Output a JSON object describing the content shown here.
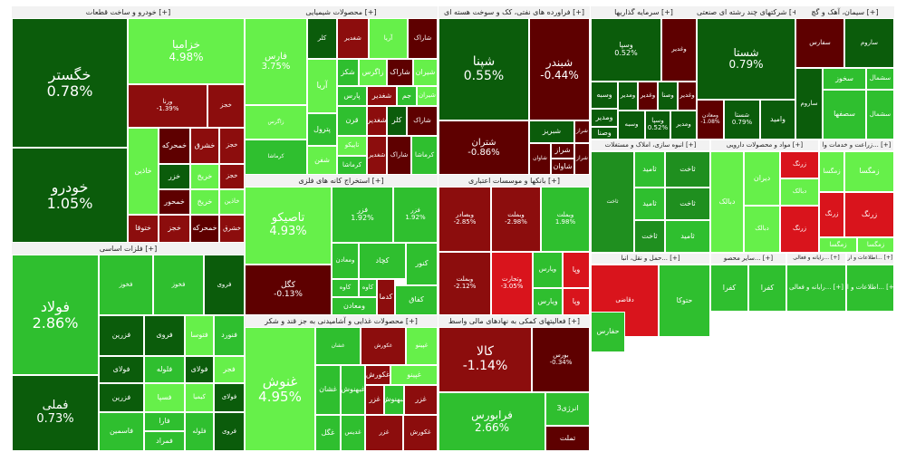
{
  "colors": {
    "dark_green": "#0b5c0b",
    "mid_green": "#1f8f1f",
    "green": "#2fbf2f",
    "light_green": "#66f04a",
    "dark_red": "#5e0000",
    "mid_red": "#8c0d0d",
    "red": "#d9141c"
  },
  "sections": [
    {
      "id": "auto",
      "title": "خودرو و ساخت قطعات [+]",
      "tiles": [
        {
          "name": "خگستر",
          "pct": "0.78%",
          "c": "dark_green"
        },
        {
          "name": "خودرو",
          "pct": "1.05%",
          "c": "dark_green"
        },
        {
          "name": "خزامیا",
          "pct": "4.98%",
          "c": "light_green"
        },
        {
          "name": "ورنا",
          "pct": "-1.39%",
          "c": "mid_red"
        },
        {
          "name": "خاذین",
          "pct": "",
          "c": "light_green"
        },
        {
          "name": "خمحرکه",
          "pct": "",
          "c": "dark_red"
        },
        {
          "name": "خشرق",
          "pct": "",
          "c": "mid_red"
        },
        {
          "name": "خزر",
          "pct": "",
          "c": "dark_green"
        },
        {
          "name": "خمحور",
          "pct": "",
          "c": "dark_red"
        },
        {
          "name": "ختوقا",
          "pct": "",
          "c": "mid_red"
        },
        {
          "name": "خریخ",
          "pct": "",
          "c": "light_green"
        },
        {
          "name": "خجز",
          "pct": "",
          "c": "mid_red"
        }
      ]
    },
    {
      "id": "metals",
      "title": "فلزات اساسی [+]",
      "tiles": [
        {
          "name": "فولاد",
          "pct": "2.86%",
          "c": "green"
        },
        {
          "name": "فملی",
          "pct": "0.73%",
          "c": "dark_green"
        },
        {
          "name": "فخوز",
          "pct": "",
          "c": "green"
        },
        {
          "name": "فروی",
          "pct": "",
          "c": "dark_green"
        },
        {
          "name": "فولای",
          "pct": "",
          "c": "dark_green"
        },
        {
          "name": "فلوله",
          "pct": "",
          "c": "green"
        },
        {
          "name": "فسپا",
          "pct": "",
          "c": "light_green"
        },
        {
          "name": "فزرین",
          "pct": "",
          "c": "dark_green"
        },
        {
          "name": "فاسمین",
          "pct": "",
          "c": "green"
        },
        {
          "name": "فتوسا",
          "pct": "",
          "c": "light_green"
        },
        {
          "name": "فنورد",
          "pct": "",
          "c": "green"
        },
        {
          "name": "فجر",
          "pct": "",
          "c": "light_green"
        },
        {
          "name": "کیمیا",
          "pct": "",
          "c": "light_green"
        },
        {
          "name": "فارا",
          "pct": "",
          "c": "green"
        },
        {
          "name": "فمراد",
          "pct": "",
          "c": "green"
        }
      ]
    },
    {
      "id": "chem",
      "title": "محصولات شیمیایی [+]",
      "tiles": [
        {
          "name": "فارس",
          "pct": "3.75%",
          "c": "light_green"
        },
        {
          "name": "آریا",
          "pct": "",
          "c": "light_green"
        },
        {
          "name": "شکز",
          "pct": "",
          "c": "green"
        },
        {
          "name": "زاگرس",
          "pct": "",
          "c": "light_green"
        },
        {
          "name": "پارس",
          "pct": "",
          "c": "green"
        },
        {
          "name": "پترول",
          "pct": "",
          "c": "green"
        },
        {
          "name": "جم",
          "pct": "",
          "c": "green"
        },
        {
          "name": "شیران",
          "pct": "",
          "c": "light_green"
        },
        {
          "name": "قرن",
          "pct": "",
          "c": "green"
        },
        {
          "name": "تاپیکو",
          "pct": "",
          "c": "light_green"
        },
        {
          "name": "شغدیر",
          "pct": "",
          "c": "mid_red"
        },
        {
          "name": "شفن",
          "pct": "",
          "c": "light_green"
        },
        {
          "name": "کرماشا",
          "pct": "",
          "c": "green"
        },
        {
          "name": "کلر",
          "pct": "",
          "c": "dark_green"
        },
        {
          "name": "شاراک",
          "pct": "",
          "c": "dark_red"
        }
      ]
    },
    {
      "id": "oil",
      "title": "فراورده های نفتی، کک و سوخت هسته ای [+]",
      "tiles": [
        {
          "name": "شپنا",
          "pct": "0.55%",
          "c": "dark_green"
        },
        {
          "name": "شبندر",
          "pct": "-0.44%",
          "c": "dark_red"
        },
        {
          "name": "شتران",
          "pct": "-0.86%",
          "c": "dark_red"
        },
        {
          "name": "شبریز",
          "pct": "",
          "c": "dark_green"
        },
        {
          "name": "شراز",
          "pct": "",
          "c": "dark_red"
        },
        {
          "name": "شاوان",
          "pct": "",
          "c": "dark_red"
        }
      ]
    },
    {
      "id": "invest",
      "title": "سرمایه گذاریها [+]",
      "tiles": [
        {
          "name": "وسپا",
          "pct": "0.52%",
          "c": "dark_green"
        },
        {
          "name": "وغدیر",
          "pct": "",
          "c": "dark_red"
        },
        {
          "name": "وسبه",
          "pct": "",
          "c": "dark_green"
        },
        {
          "name": "ومدیر",
          "pct": "",
          "c": "dark_green"
        },
        {
          "name": "وصنا",
          "pct": "",
          "c": "dark_green"
        }
      ]
    },
    {
      "id": "multi",
      "title": "شرکتهای چند رشته ای صنعتی [+]",
      "tiles": [
        {
          "name": "شستا",
          "pct": "0.79%",
          "c": "dark_green"
        },
        {
          "name": "وامید",
          "pct": "",
          "c": "dark_green"
        },
        {
          "name": "ومعادن",
          "pct": "-1.08%",
          "c": "dark_red"
        }
      ]
    },
    {
      "id": "cement",
      "title": "سیمان، آهک و گچ [+]",
      "tiles": [
        {
          "name": "سخوز",
          "pct": "",
          "c": "green"
        },
        {
          "name": "سصفها",
          "pct": "",
          "c": "green"
        },
        {
          "name": "سفارس",
          "pct": "",
          "c": "dark_red"
        },
        {
          "name": "ساروم",
          "pct": "",
          "c": "dark_green"
        },
        {
          "name": "سشمال",
          "pct": "",
          "c": "green"
        }
      ]
    },
    {
      "id": "mining",
      "title": "استخراج کانه های فلزی [+]",
      "tiles": [
        {
          "name": "تاصیکو",
          "pct": "4.93%",
          "c": "light_green"
        },
        {
          "name": "کگل",
          "pct": "-0.13%",
          "c": "dark_red"
        },
        {
          "name": "فزر",
          "pct": "1.92%",
          "c": "green"
        },
        {
          "name": "کچاد",
          "pct": "",
          "c": "green"
        },
        {
          "name": "کنور",
          "pct": "",
          "c": "green"
        },
        {
          "name": "کاوه",
          "pct": "",
          "c": "green"
        },
        {
          "name": "کدما",
          "pct": "",
          "c": "mid_red"
        },
        {
          "name": "کفاق",
          "pct": "",
          "c": "green"
        },
        {
          "name": "ومعادن",
          "pct": "",
          "c": "green"
        }
      ]
    },
    {
      "id": "banks",
      "title": "بانکها و موسسات اعتباری [+]",
      "tiles": [
        {
          "name": "وبصادر",
          "pct": "-2.85%",
          "c": "mid_red"
        },
        {
          "name": "وبملت",
          "pct": "-2.98%",
          "c": "mid_red"
        },
        {
          "name": "وبملت",
          "pct": "1.98%",
          "c": "green"
        },
        {
          "name": "وبملت",
          "pct": "-2.12%",
          "c": "mid_red"
        },
        {
          "name": "وتجارت",
          "pct": "-3.05%",
          "c": "red"
        },
        {
          "name": "ویارس",
          "pct": "",
          "c": "green"
        },
        {
          "name": "وپا",
          "pct": "",
          "c": "red"
        }
      ]
    },
    {
      "id": "food",
      "title": "محصولات غذایی و آشامیدنی به جز قند و شکر [+]",
      "tiles": [
        {
          "name": "غنوش",
          "pct": "4.95%",
          "c": "light_green"
        },
        {
          "name": "غشان",
          "pct": "",
          "c": "green"
        },
        {
          "name": "غگل",
          "pct": "",
          "c": "green"
        },
        {
          "name": "غبهنوش",
          "pct": "",
          "c": "green"
        },
        {
          "name": "غدیس",
          "pct": "",
          "c": "green"
        },
        {
          "name": "غکورش",
          "pct": "",
          "c": "mid_red"
        },
        {
          "name": "غزر",
          "pct": "",
          "c": "mid_red"
        },
        {
          "name": "غپینو",
          "pct": "",
          "c": "light_green"
        }
      ]
    },
    {
      "id": "fin",
      "title": "فعالیتهای کمکی به نهادهای مالی واسط [+]",
      "tiles": [
        {
          "name": "کالا",
          "pct": "-1.14%",
          "c": "mid_red"
        },
        {
          "name": "بورس",
          "pct": "-0.34%",
          "c": "dark_red"
        },
        {
          "name": "فرابورس",
          "pct": "2.66%",
          "c": "green"
        },
        {
          "name": "انرژی3",
          "pct": "",
          "c": "green"
        },
        {
          "name": "تملت",
          "pct": "",
          "c": "dark_red"
        }
      ]
    },
    {
      "id": "misc",
      "title": "",
      "tiles": [
        {
          "name": "انبوه سازی، املاک و مستغلات [+]",
          "pct": "",
          "c": "mid_green"
        },
        {
          "name": "ثامید",
          "pct": "",
          "c": "green"
        },
        {
          "name": "ثاخت",
          "pct": "",
          "c": "mid_green"
        },
        {
          "name": "مواد و محصولات دارویی [+]",
          "pct": "",
          "c": "green"
        },
        {
          "name": "دبالک",
          "pct": "",
          "c": "light_green"
        },
        {
          "name": "دیران",
          "pct": "",
          "c": "light_green"
        },
        {
          "name": "زراعت و خدمات وا... [+]",
          "pct": "",
          "c": "light_green"
        },
        {
          "name": "زرنگ",
          "pct": "",
          "c": "red"
        },
        {
          "name": "زمگسا",
          "pct": "",
          "c": "light_green"
        },
        {
          "name": "حمل و نقل، انبا... [+]",
          "pct": "",
          "c": "mid_green"
        },
        {
          "name": "حتوکا",
          "pct": "",
          "c": "green"
        },
        {
          "name": "سایر محصو... [+]",
          "pct": "",
          "c": "green"
        },
        {
          "name": "کفرا",
          "pct": "",
          "c": "green"
        },
        {
          "name": "رایانه و فعالی... [+]",
          "pct": "",
          "c": "green"
        },
        {
          "name": "اطلاعات و ار... [+]",
          "pct": "",
          "c": "green"
        },
        {
          "name": "لاستیک و پلا... [+]",
          "pct": "",
          "c": "green"
        },
        {
          "name": "پکرمان",
          "pct": "",
          "c": "green"
        },
        {
          "name": "عرضه برق [+]",
          "pct": "",
          "c": "green"
        },
        {
          "name": "بفجر",
          "pct": "",
          "c": "mid_green"
        },
        {
          "name": "مخابرات [+]",
          "pct": "",
          "c": "dark_red"
        },
        {
          "name": "هتل و ر... [+]",
          "pct": "",
          "c": "light_green"
        },
        {
          "name": "کانی... [+]",
          "pct": "",
          "c": "green"
        },
        {
          "name": "تولید... [+]",
          "pct": "",
          "c": "mid_green"
        },
        {
          "name": "بیمه و صندوق [+]",
          "pct": "",
          "c": "green"
        },
        {
          "name": "سایر واسط [+]",
          "pct": "",
          "c": "green"
        },
        {
          "name": "وتوسم",
          "pct": "",
          "c": "green"
        },
        {
          "name": "خدمات... [+]",
          "pct": "",
          "c": "light_green"
        },
        {
          "name": "ماشین... [+]",
          "pct": "",
          "c": "light_green"
        },
        {
          "name": "قند و شکر [+]",
          "pct": "",
          "c": "green"
        },
        {
          "name": "قثابت",
          "pct": "",
          "c": "green"
        },
        {
          "name": "قزوین",
          "pct": "",
          "c": "green"
        },
        {
          "name": "ماشین آلا... [+]",
          "pct": "",
          "c": "light_green"
        },
        {
          "name": "نساج... [+]",
          "pct": "",
          "c": "light_green"
        },
        {
          "name": "چکارن",
          "pct": "",
          "c": "light_green"
        },
        {
          "name": "کرمان",
          "pct": "",
          "c": "green"
        },
        {
          "name": "ساس [+]",
          "pct": "",
          "c": "light_green"
        },
        {
          "name": "سم [+]",
          "pct": "",
          "c": "light_green"
        },
        {
          "name": "جبلم",
          "pct": "",
          "c": "light_green"
        },
        {
          "name": "رمپنا",
          "pct": "",
          "c": "green"
        },
        {
          "name": "حفارس",
          "pct": "",
          "c": "green"
        },
        {
          "name": "دقاضی",
          "pct": "",
          "c": "red"
        }
      ]
    }
  ]
}
